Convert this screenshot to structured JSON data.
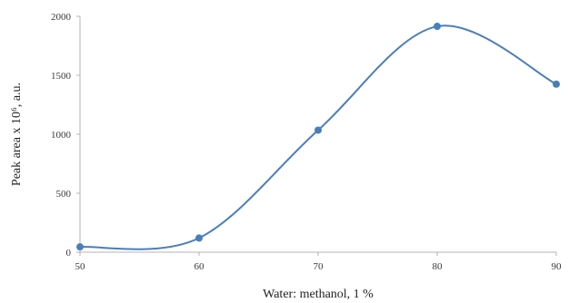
{
  "chart_data": {
    "type": "line",
    "smooth": true,
    "xlabel": "Water: methanol, 1 %",
    "ylabel": "Peak area x 10⁶, a.u.",
    "xlim": [
      50,
      90
    ],
    "ylim": [
      0,
      2000
    ],
    "xticks": [
      "50",
      "60",
      "70",
      "80",
      "90"
    ],
    "yticks": [
      "0",
      "500",
      "1000",
      "1500",
      "2000"
    ],
    "grid": false,
    "series": [
      {
        "x": [
          50,
          60,
          70,
          80,
          90
        ],
        "y": [
          45,
          120,
          1035,
          1915,
          1425
        ]
      }
    ],
    "colors": {
      "series": "#4a7ebb",
      "axis": "#b3b3b3"
    }
  }
}
